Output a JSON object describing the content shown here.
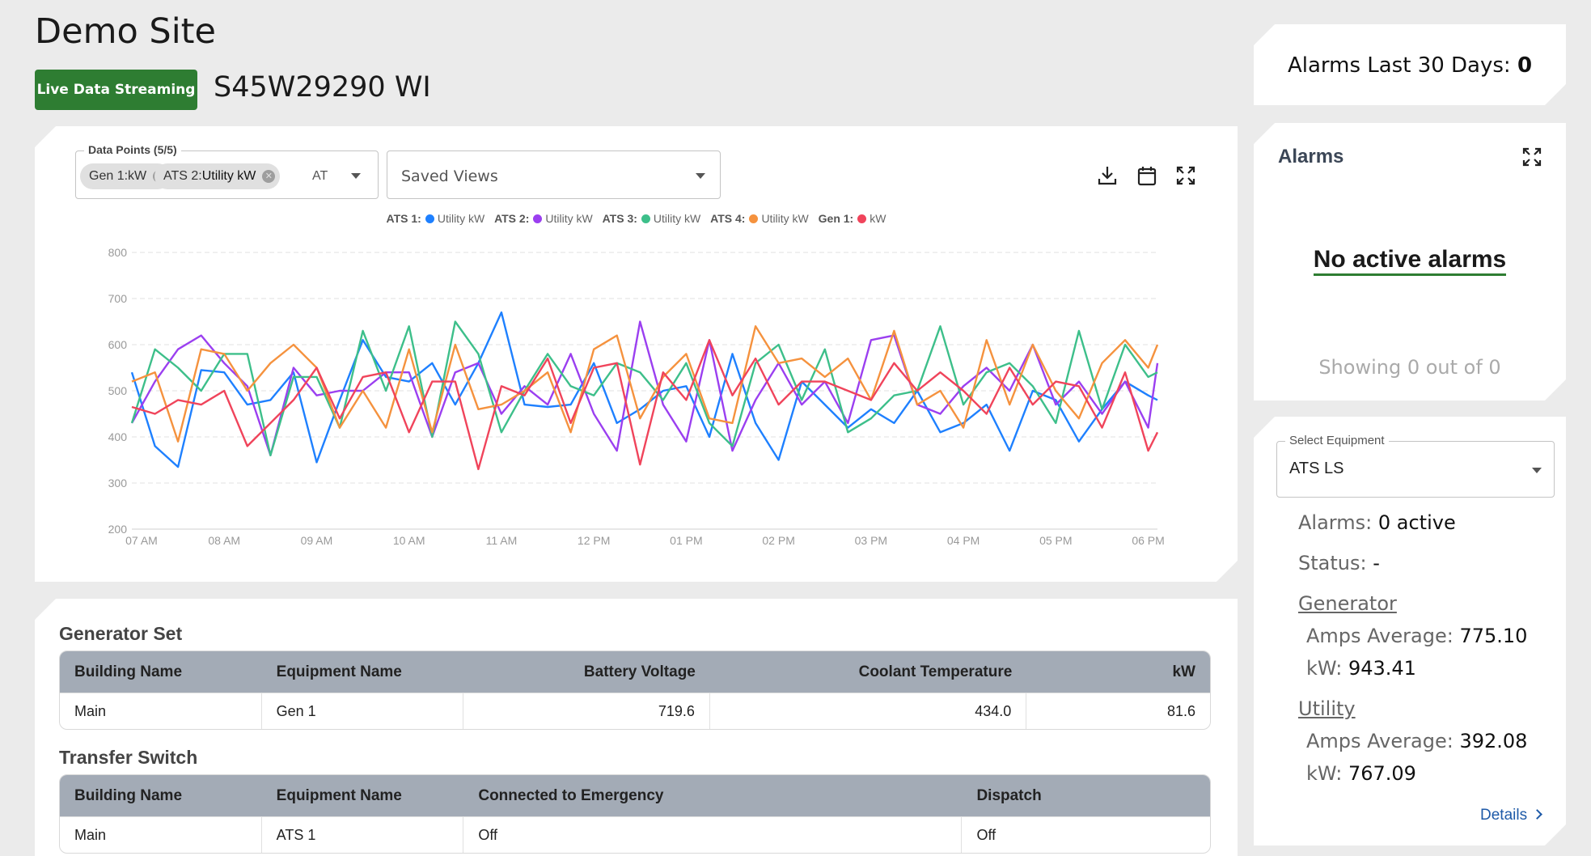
{
  "site": {
    "title": "Demo Site",
    "live_label": "Live Data Streaming",
    "address": "S45W29290 WI"
  },
  "data_points": {
    "label": "Data Points (5/5)",
    "chips": [
      {
        "prefix": "Gen 1:",
        "suffix": "kW"
      },
      {
        "prefix": "ATS 2:",
        "suffix": "Utility kW"
      }
    ],
    "overflow": "AT"
  },
  "saved_views": {
    "label": "Saved Views"
  },
  "chart_data": {
    "type": "line",
    "ylim": [
      200,
      800
    ],
    "yticks": [
      200,
      300,
      400,
      500,
      600,
      700,
      800
    ],
    "xticks": [
      "07 AM",
      "08 AM",
      "09 AM",
      "10 AM",
      "11 AM",
      "12 PM",
      "01 PM",
      "02 PM",
      "03 PM",
      "04 PM",
      "05 PM",
      "06 PM"
    ],
    "x_range": [
      7,
      18.1
    ],
    "grid": true,
    "legend_position": "top",
    "x": [
      7.0,
      7.25,
      7.5,
      7.75,
      8.0,
      8.25,
      8.5,
      8.75,
      9.0,
      9.25,
      9.5,
      9.75,
      10.0,
      10.25,
      10.5,
      10.75,
      11.0,
      11.25,
      11.5,
      11.75,
      12.0,
      12.25,
      12.5,
      12.75,
      13.0,
      13.25,
      13.5,
      13.75,
      14.0,
      14.25,
      14.5,
      14.75,
      15.0,
      15.25,
      15.5,
      15.75,
      16.0,
      16.25,
      16.5,
      16.75,
      17.0,
      17.25,
      17.5,
      17.75,
      18.0,
      18.1
    ],
    "series": [
      {
        "name": "Utility kW",
        "device": "ATS 1:",
        "color": "#1e80ff",
        "values": [
          540,
          380,
          335,
          545,
          540,
          470,
          480,
          540,
          345,
          480,
          610,
          530,
          520,
          560,
          470,
          560,
          670,
          470,
          465,
          470,
          560,
          430,
          460,
          500,
          510,
          400,
          580,
          430,
          350,
          520,
          470,
          420,
          460,
          430,
          500,
          410,
          430,
          470,
          370,
          500,
          480,
          390,
          460,
          520,
          490,
          480
        ]
      },
      {
        "name": "Utility kW",
        "device": "ATS 2:",
        "color": "#9b3ff0",
        "values": [
          430,
          520,
          590,
          620,
          560,
          510,
          360,
          550,
          490,
          500,
          500,
          540,
          540,
          400,
          540,
          560,
          450,
          510,
          470,
          580,
          450,
          370,
          650,
          470,
          390,
          610,
          370,
          480,
          560,
          470,
          520,
          430,
          610,
          620,
          470,
          450,
          510,
          550,
          500,
          600,
          470,
          520,
          450,
          520,
          420,
          560
        ]
      },
      {
        "name": "Utility kW",
        "device": "ATS 3:",
        "color": "#3dbf8a",
        "values": [
          430,
          590,
          550,
          500,
          580,
          580,
          360,
          530,
          530,
          420,
          630,
          500,
          640,
          400,
          650,
          580,
          410,
          500,
          580,
          510,
          490,
          560,
          540,
          480,
          560,
          430,
          380,
          560,
          600,
          480,
          590,
          410,
          440,
          490,
          500,
          640,
          470,
          540,
          560,
          510,
          430,
          630,
          460,
          600,
          530,
          540
        ]
      },
      {
        "name": "Utility kW",
        "device": "ATS 4:",
        "color": "#f5923e",
        "values": [
          520,
          540,
          390,
          590,
          580,
          500,
          560,
          600,
          550,
          420,
          500,
          420,
          590,
          410,
          600,
          460,
          470,
          500,
          540,
          410,
          590,
          620,
          440,
          530,
          580,
          440,
          430,
          640,
          560,
          570,
          530,
          570,
          480,
          630,
          470,
          500,
          420,
          610,
          470,
          600,
          500,
          440,
          560,
          610,
          550,
          600
        ]
      },
      {
        "name": "kW",
        "device": "Gen 1:",
        "color": "#f0445b",
        "values": [
          465,
          450,
          480,
          470,
          500,
          380,
          430,
          480,
          550,
          440,
          530,
          540,
          410,
          520,
          520,
          330,
          510,
          490,
          570,
          430,
          550,
          560,
          340,
          540,
          480,
          610,
          490,
          570,
          470,
          520,
          520,
          500,
          480,
          560,
          500,
          540,
          500,
          450,
          550,
          470,
          520,
          510,
          420,
          540,
          370,
          410
        ]
      }
    ]
  },
  "generator_set": {
    "title": "Generator Set",
    "headers": [
      "Building Name",
      "Equipment Name",
      "Battery Voltage",
      "Coolant Temperature",
      "kW"
    ],
    "rows": [
      [
        "Main",
        "Gen 1",
        "719.6",
        "434.0",
        "81.6"
      ]
    ]
  },
  "transfer_switch": {
    "title": "Transfer Switch",
    "headers": [
      "Building Name",
      "Equipment Name",
      "Connected to Emergency",
      "Dispatch"
    ],
    "rows": [
      [
        "Main",
        "ATS 1",
        "Off",
        "Off"
      ]
    ]
  },
  "alarms30": {
    "label": "Alarms Last 30 Days:",
    "value": "0"
  },
  "alarms": {
    "title": "Alarms",
    "empty": "No active alarms",
    "showing": "Showing 0 out of 0"
  },
  "equipment": {
    "select_label": "Select Equipment",
    "selected": "ATS LS",
    "alarms_label": "Alarms:",
    "alarms_value": "0 active",
    "status_label": "Status:",
    "status_value": "-",
    "generator": {
      "title": "Generator",
      "amps_label": "Amps Average:",
      "amps_value": "775.10",
      "kw_label": "kW:",
      "kw_value": "943.41"
    },
    "utility": {
      "title": "Utility",
      "amps_label": "Amps Average:",
      "amps_value": "392.08",
      "kw_label": "kW:",
      "kw_value": "767.09"
    },
    "details_label": "Details"
  }
}
